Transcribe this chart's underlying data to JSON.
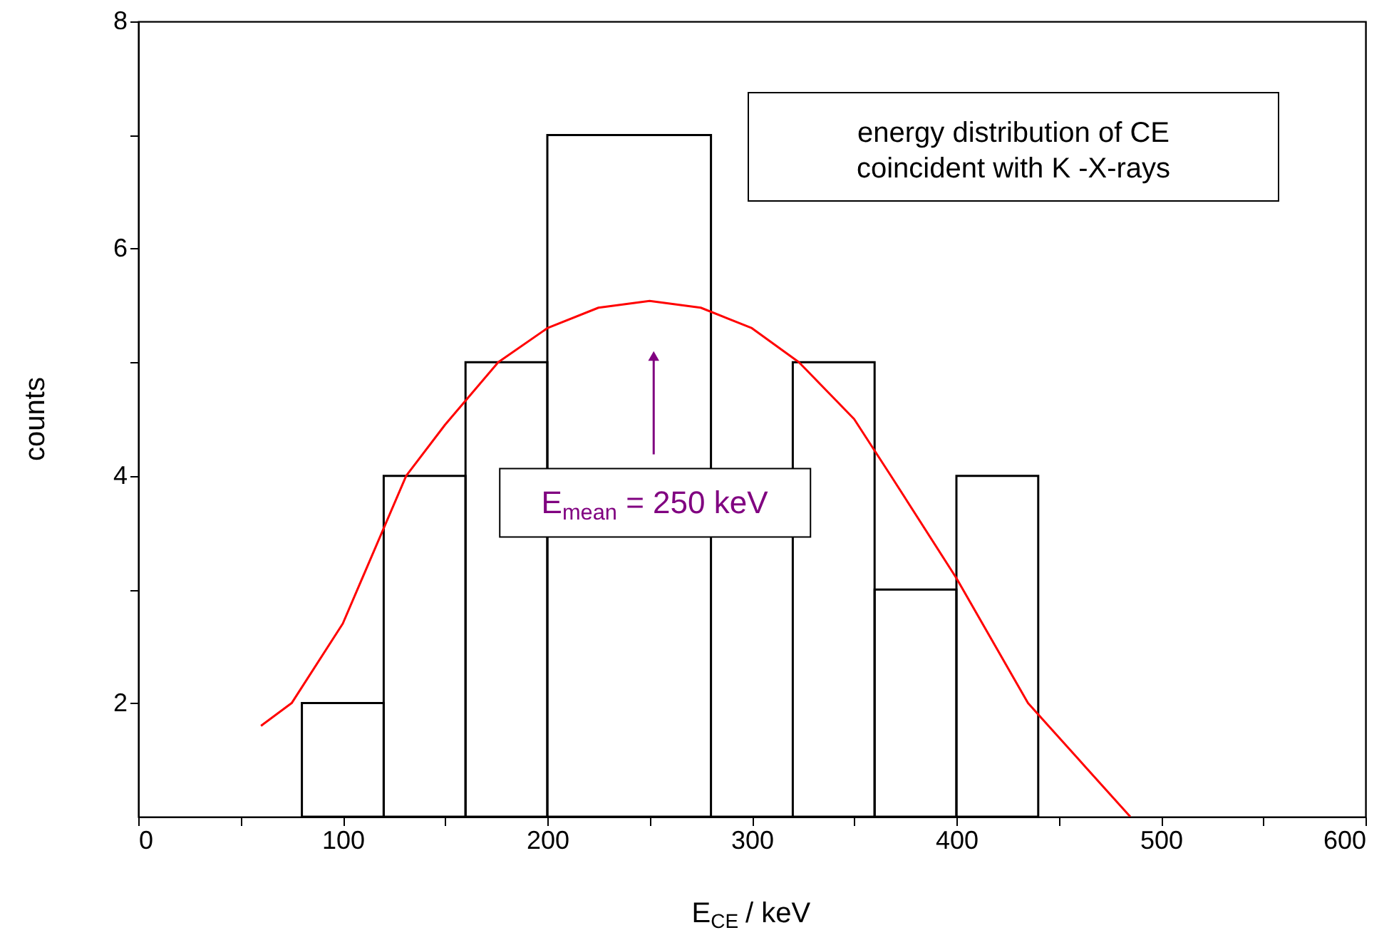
{
  "chart_data": {
    "type": "histogram",
    "xlabel": "E$_{CE}$ / keV",
    "ylabel": "counts",
    "bins": [
      80,
      120,
      160,
      200,
      280,
      320,
      360,
      400,
      440
    ],
    "values": [
      2,
      4,
      5,
      7,
      1,
      5,
      3,
      4
    ],
    "color": "#000000",
    "series": [
      {
        "type": "line",
        "color": "#ff0000",
        "x": [
          60,
          75,
          100,
          131,
          150,
          176,
          200,
          225,
          250,
          275,
          300,
          323,
          350,
          368,
          400,
          435,
          460,
          485
        ],
        "values": [
          1.8,
          2.0,
          2.7,
          4.0,
          4.45,
          5.0,
          5.3,
          5.48,
          5.54,
          5.48,
          5.3,
          5.0,
          4.5,
          4.0,
          3.1,
          2.0,
          1.5,
          1.0
        ]
      }
    ],
    "xlim": [
      0,
      600
    ],
    "ylim": [
      1,
      8
    ],
    "xticks": [
      0,
      {
        "value": 50,
        "label": null
      },
      100,
      {
        "value": 150,
        "label": null
      },
      200,
      {
        "value": 250,
        "label": null
      },
      300,
      {
        "value": 350,
        "label": null
      },
      400,
      {
        "value": 450,
        "label": null
      },
      500,
      {
        "value": 550,
        "label": null
      },
      600
    ],
    "yticks": [
      2,
      {
        "value": 3,
        "label": null
      },
      4,
      {
        "value": 5,
        "label": null
      },
      6,
      {
        "value": 7,
        "label": null
      },
      8
    ],
    "grid": false,
    "annotations": [
      "energy distribution of CE\ncoincident with K -X-rays",
      "E$_{mean}$ = 250 keV"
    ]
  }
}
